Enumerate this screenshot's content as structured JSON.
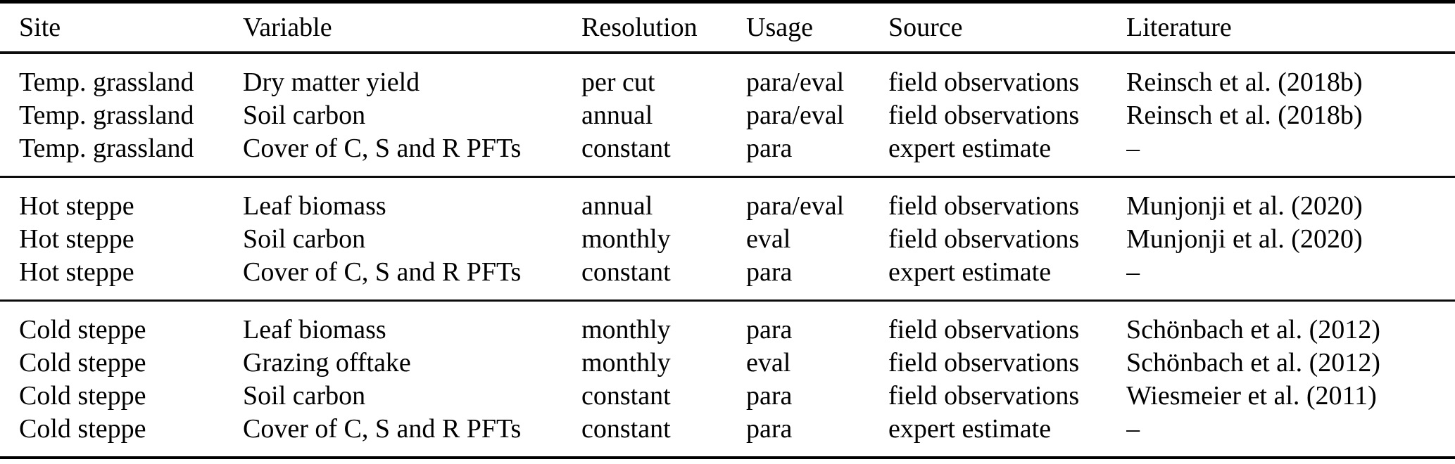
{
  "table": {
    "columns": [
      {
        "key": "site",
        "label": "Site"
      },
      {
        "key": "variable",
        "label": "Variable"
      },
      {
        "key": "resolution",
        "label": "Resolution"
      },
      {
        "key": "usage",
        "label": "Usage"
      },
      {
        "key": "source",
        "label": "Source"
      },
      {
        "key": "literature",
        "label": "Literature"
      }
    ],
    "groups": [
      {
        "rows": [
          [
            "Temp. grassland",
            "Dry matter yield",
            "per cut",
            "para/eval",
            "field observations",
            "Reinsch et al. (2018b)"
          ],
          [
            "Temp. grassland",
            "Soil carbon",
            "annual",
            "para/eval",
            "field observations",
            "Reinsch et al. (2018b)"
          ],
          [
            "Temp. grassland",
            "Cover of C, S and R PFTs",
            "constant",
            "para",
            "expert estimate",
            "–"
          ]
        ]
      },
      {
        "rows": [
          [
            "Hot steppe",
            "Leaf biomass",
            "annual",
            "para/eval",
            "field observations",
            "Munjonji et al. (2020)"
          ],
          [
            "Hot steppe",
            "Soil carbon",
            "monthly",
            "eval",
            "field observations",
            "Munjonji et al. (2020)"
          ],
          [
            "Hot steppe",
            "Cover of C, S and R PFTs",
            "constant",
            "para",
            "expert estimate",
            "–"
          ]
        ]
      },
      {
        "rows": [
          [
            "Cold steppe",
            "Leaf biomass",
            "monthly",
            "para",
            "field observations",
            "Schönbach et al. (2012)"
          ],
          [
            "Cold steppe",
            "Grazing offtake",
            "monthly",
            "eval",
            "field observations",
            "Schönbach et al. (2012)"
          ],
          [
            "Cold steppe",
            "Soil carbon",
            "constant",
            "para",
            "field observations",
            "Wiesmeier et al. (2011)"
          ],
          [
            "Cold steppe",
            "Cover of C, S and R PFTs",
            "constant",
            "para",
            "expert estimate",
            "–"
          ]
        ]
      }
    ]
  },
  "colors": {
    "background": "#ffffff",
    "text": "#000000",
    "rule": "#0d0d0d"
  }
}
